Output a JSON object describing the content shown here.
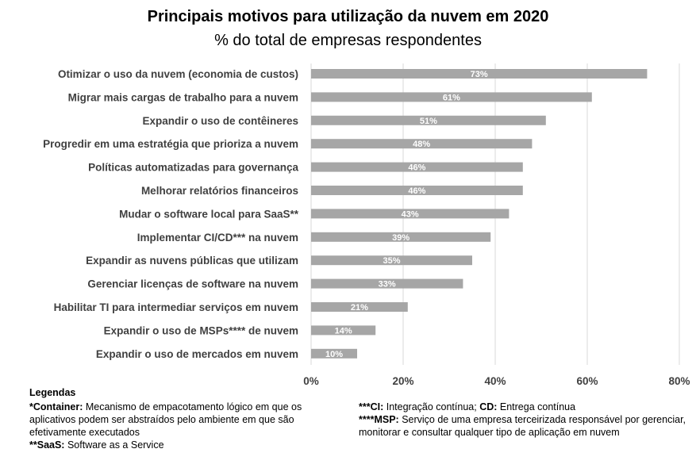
{
  "chart_data": {
    "type": "bar",
    "orientation": "horizontal",
    "title": "Principais motivos para utilização da nuvem em 2020",
    "subtitle": "% do total de empresas respondentes",
    "categories": [
      "Otimizar o uso da nuvem (economia de custos)",
      "Migrar mais cargas de trabalho para a nuvem",
      "Expandir o uso de contêineres",
      "Progredir em uma estratégia que prioriza a nuvem",
      "Políticas automatizadas para governança",
      "Melhorar relatórios financeiros",
      "Mudar o software local para SaaS**",
      "Implementar CI/CD*** na nuvem",
      "Expandir as nuvens públicas que utilizam",
      "Gerenciar licenças de software na nuvem",
      "Habilitar TI para intermediar serviços em nuvem",
      "Expandir o uso de MSPs**** de nuvem",
      "Expandir o uso de mercados em nuvem"
    ],
    "values": [
      73,
      61,
      51,
      48,
      46,
      46,
      43,
      39,
      35,
      33,
      21,
      14,
      10
    ],
    "data_labels": [
      "73%",
      "61%",
      "51%",
      "48%",
      "46%",
      "46%",
      "43%",
      "39%",
      "35%",
      "33%",
      "21%",
      "14%",
      "10%"
    ],
    "xlim": [
      0,
      80
    ],
    "x_ticks": [
      0,
      20,
      40,
      60,
      80
    ],
    "x_tick_labels": [
      "0%",
      "20%",
      "40%",
      "60%",
      "80%"
    ],
    "bar_color": "#a6a6a6",
    "grid": "vertical",
    "grid_color": "#d9d9d9",
    "data_label_color": "#ffffff"
  },
  "legend": {
    "title": "Legendas",
    "left": [
      {
        "term": "*Container:",
        "text": " Mecanismo de empacotamento lógico em que os aplicativos podem ser abstraídos pelo ambiente em que são efetivamente executados"
      },
      {
        "term": "**SaaS:",
        "text": " Software as a Service"
      }
    ],
    "right": [
      {
        "term": "***CI:",
        "text": " Integração contínua; ",
        "term2": "CD:",
        "text2": " Entrega contínua"
      },
      {
        "term": "****MSP:",
        "text": " Serviço de uma empresa terceirizada responsável por gerenciar, monitorar e consultar qualquer tipo de aplicação em nuvem"
      }
    ]
  }
}
